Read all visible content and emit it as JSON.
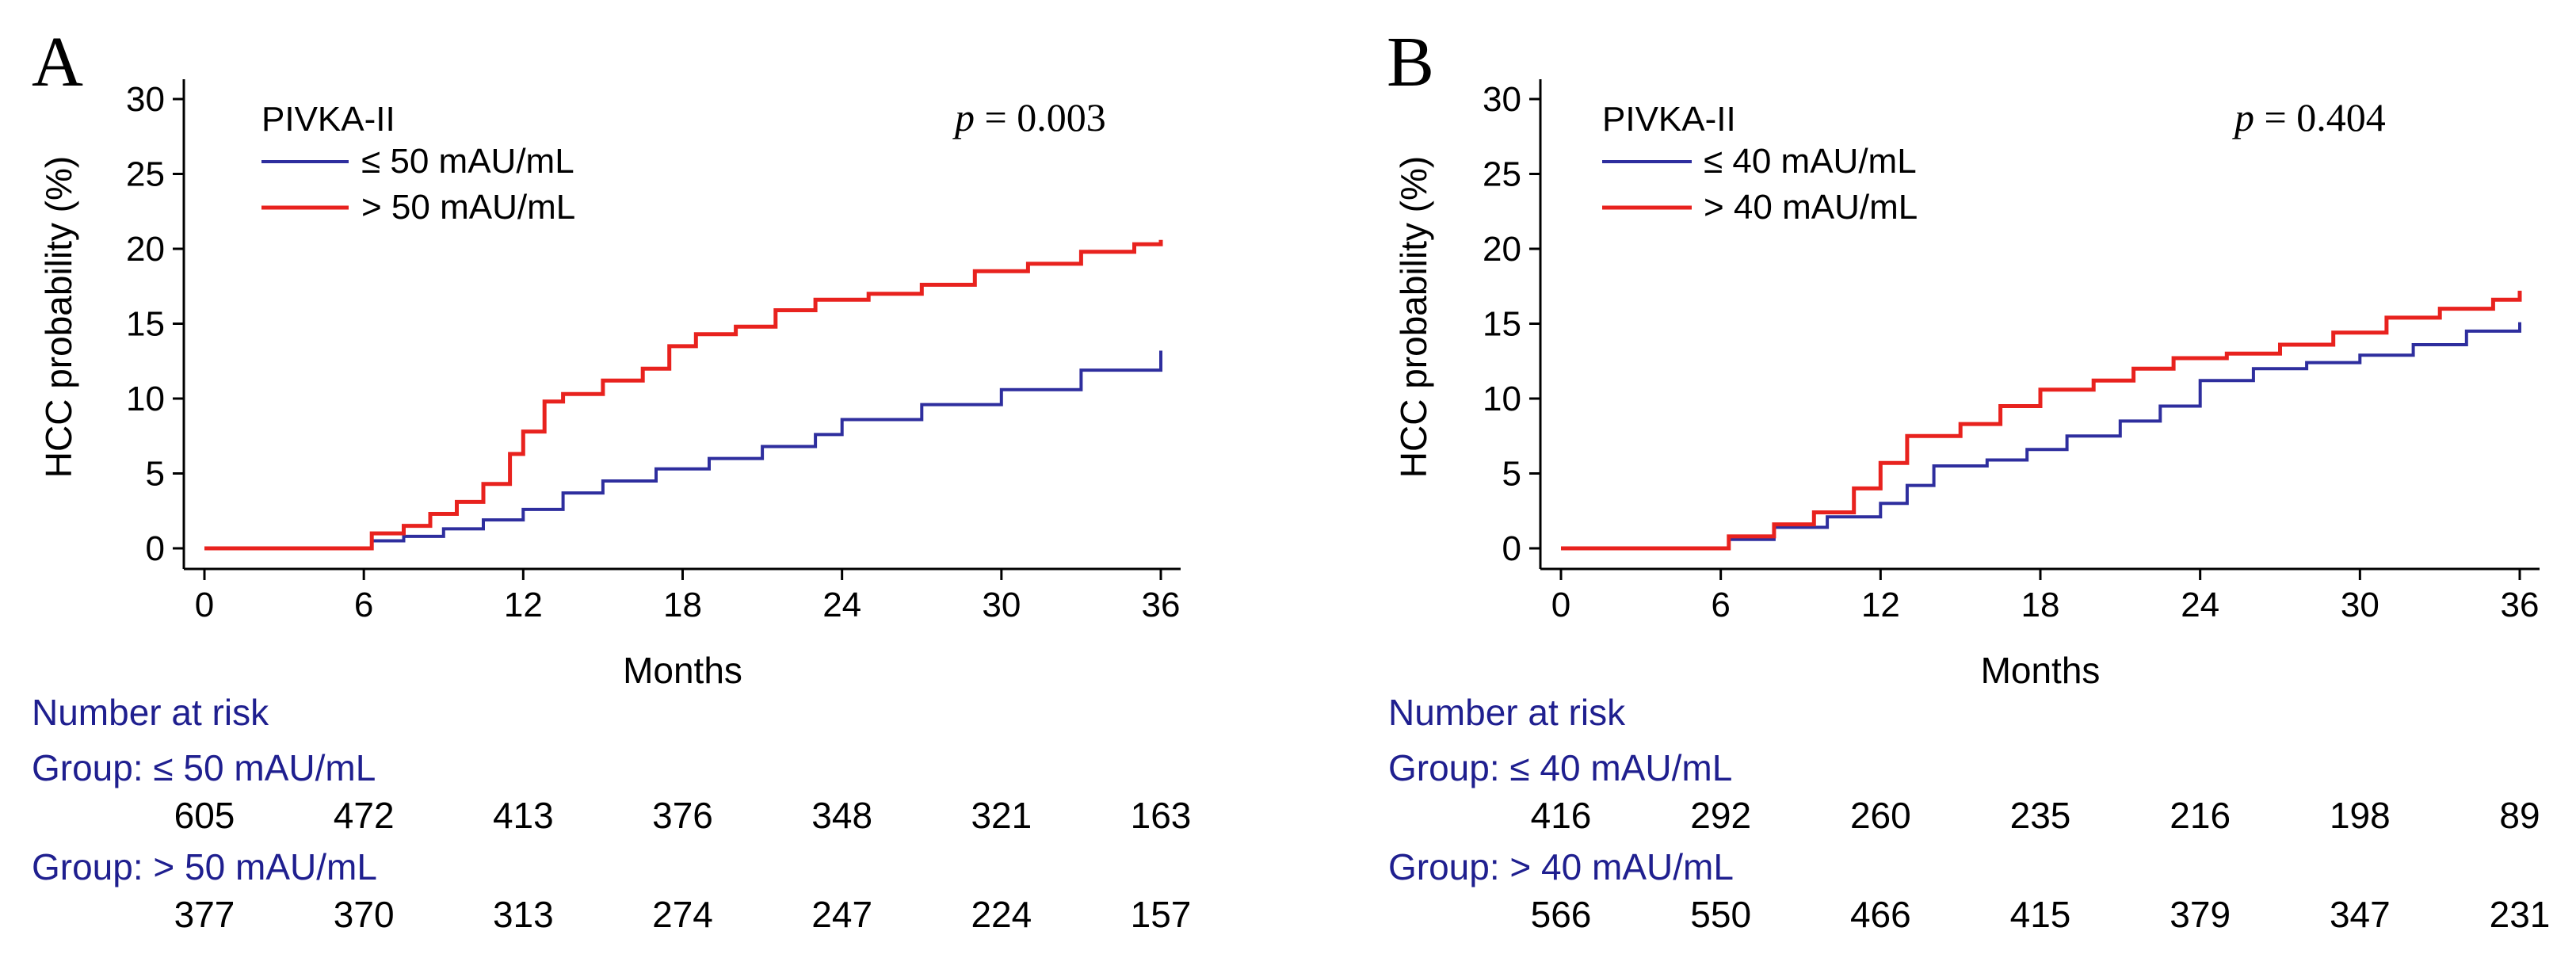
{
  "chart_data": [
    {
      "type": "line",
      "panel_label": "A",
      "ylabel": "HCC probability (%)",
      "xlabel": "Months",
      "xlim": [
        0,
        36
      ],
      "ylim": [
        0,
        30
      ],
      "x_ticks": [
        "0",
        "6",
        "12",
        "18",
        "24",
        "30",
        "36"
      ],
      "y_ticks": [
        "0",
        "5",
        "10",
        "15",
        "20",
        "25",
        "30"
      ],
      "legend_title": "PIVKA-II",
      "p_label": "p",
      "p_value": "= 0.003",
      "series": [
        {
          "name": "≤ 50 mAU/mL",
          "color": "#2e2e9e",
          "x": [
            0,
            6,
            6.3,
            7.5,
            9,
            10.5,
            12,
            13.5,
            15,
            17,
            19,
            21,
            23,
            24,
            27,
            30,
            33,
            36
          ],
          "y": [
            0,
            0,
            0.5,
            0.8,
            1.3,
            1.9,
            2.6,
            3.7,
            4.5,
            5.3,
            6.0,
            6.8,
            7.6,
            8.6,
            9.6,
            10.6,
            11.9,
            13.2
          ]
        },
        {
          "name": "> 50 mAU/mL",
          "color": "#e8221e",
          "x": [
            0,
            6,
            6.3,
            7.5,
            8.5,
            9.5,
            10.5,
            11.5,
            12,
            12.8,
            13.5,
            15,
            16.5,
            17.5,
            18.5,
            20,
            21.5,
            23,
            25,
            27,
            29,
            31,
            33,
            35,
            36
          ],
          "y": [
            0,
            0,
            1.0,
            1.5,
            2.3,
            3.1,
            4.3,
            6.3,
            7.8,
            9.8,
            10.3,
            11.2,
            12.0,
            13.5,
            14.3,
            14.8,
            15.9,
            16.6,
            17.0,
            17.6,
            18.5,
            19.0,
            19.8,
            20.3,
            20.6
          ]
        }
      ]
    },
    {
      "type": "line",
      "panel_label": "B",
      "ylabel": "HCC probability (%)",
      "xlabel": "Months",
      "xlim": [
        0,
        36
      ],
      "ylim": [
        0,
        30
      ],
      "x_ticks": [
        "0",
        "6",
        "12",
        "18",
        "24",
        "30",
        "36"
      ],
      "y_ticks": [
        "0",
        "5",
        "10",
        "15",
        "20",
        "25",
        "30"
      ],
      "legend_title": "PIVKA-II",
      "p_label": "p",
      "p_value": "= 0.404",
      "series": [
        {
          "name": "≤ 40 mAU/mL",
          "color": "#2e2e9e",
          "x": [
            0,
            6,
            6.3,
            8,
            10,
            12,
            13,
            14,
            16,
            17.5,
            19,
            21,
            22.5,
            24,
            26,
            28,
            30,
            32,
            34,
            36
          ],
          "y": [
            0,
            0,
            0.6,
            1.4,
            2.1,
            3.0,
            4.2,
            5.5,
            5.9,
            6.6,
            7.5,
            8.5,
            9.5,
            11.2,
            12.0,
            12.4,
            12.9,
            13.6,
            14.5,
            15.1
          ]
        },
        {
          "name": "> 40 mAU/mL",
          "color": "#e8221e",
          "x": [
            0,
            6,
            6.3,
            8,
            9.5,
            11,
            12,
            13,
            15,
            16.5,
            18,
            20,
            21.5,
            23,
            25,
            27,
            29,
            31,
            33,
            35,
            36
          ],
          "y": [
            0,
            0,
            0.8,
            1.6,
            2.4,
            4.0,
            5.7,
            7.5,
            8.3,
            9.5,
            10.6,
            11.2,
            12.0,
            12.7,
            13.0,
            13.6,
            14.4,
            15.4,
            16.0,
            16.6,
            17.2
          ]
        }
      ]
    }
  ],
  "risk_tables": [
    {
      "title": "Number at risk",
      "groups": [
        {
          "label": "Group: ≤ 50 mAU/mL",
          "values": [
            "605",
            "472",
            "413",
            "376",
            "348",
            "321",
            "163"
          ]
        },
        {
          "label": "Group: > 50 mAU/mL",
          "values": [
            "377",
            "370",
            "313",
            "274",
            "247",
            "224",
            "157"
          ]
        }
      ]
    },
    {
      "title": "Number at risk",
      "groups": [
        {
          "label": "Group: ≤ 40 mAU/mL",
          "values": [
            "416",
            "292",
            "260",
            "235",
            "216",
            "198",
            "89"
          ]
        },
        {
          "label": "Group: > 40 mAU/mL",
          "values": [
            "566",
            "550",
            "466",
            "415",
            "379",
            "347",
            "231"
          ]
        }
      ]
    }
  ]
}
